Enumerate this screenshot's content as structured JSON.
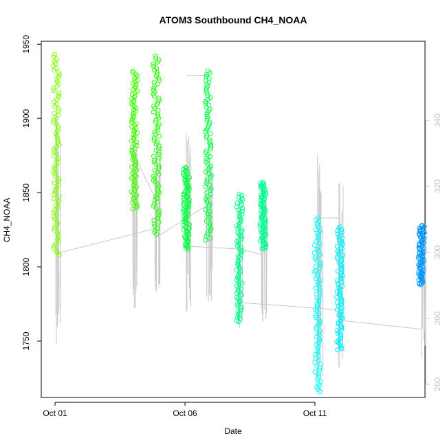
{
  "chart_data": {
    "type": "scatter",
    "title": "ATOM3 Southbound CH4_NOAA",
    "xlabel": "Date",
    "ylabel": "CH4_NOAA",
    "x_ticks": [
      "Oct 01",
      "Oct 06",
      "Oct 11"
    ],
    "x_range_days": [
      0,
      14
    ],
    "ylim": [
      1712,
      1952
    ],
    "y_ticks": [
      1750,
      1800,
      1850,
      1900,
      1950
    ],
    "y2lim": [
      256,
      364
    ],
    "y2_ticks": [
      260,
      280,
      300,
      320,
      340
    ],
    "y2_color": "#c8c8c8",
    "grid": false,
    "series": [
      {
        "x": 0.05,
        "low": 1808,
        "high": 1943,
        "color": "#80ff00"
      },
      {
        "x": 3.05,
        "low": 1839,
        "high": 1932,
        "color": "#40ff00"
      },
      {
        "x": 3.9,
        "low": 1822,
        "high": 1942,
        "color": "#20ff00"
      },
      {
        "x": 5.05,
        "low": 1812,
        "high": 1867,
        "color": "#00ff40"
      },
      {
        "x": 5.9,
        "low": 1818,
        "high": 1932,
        "color": "#00ff40"
      },
      {
        "x": 7.1,
        "low": 1763,
        "high": 1849,
        "color": "#00ff90"
      },
      {
        "x": 8.0,
        "low": 1812,
        "high": 1857,
        "color": "#00ff90"
      },
      {
        "x": 10.1,
        "low": 1716,
        "high": 1833,
        "color": "#00ffff"
      },
      {
        "x": 10.95,
        "low": 1744,
        "high": 1827,
        "color": "#00f0ff"
      },
      {
        "x": 14.1,
        "low": 1788,
        "high": 1828,
        "color": "#0099ff"
      }
    ],
    "secondary_series": {
      "color": "#c8c8c8",
      "spikes": [
        {
          "x": 0.05,
          "low": 272,
          "high": 342
        },
        {
          "x": 3.05,
          "low": 283,
          "high": 338
        },
        {
          "x": 3.9,
          "low": 288,
          "high": 334
        },
        {
          "x": 5.05,
          "low": 282,
          "high": 336
        },
        {
          "x": 5.9,
          "low": 285,
          "high": 334
        },
        {
          "x": 7.1,
          "low": 277,
          "high": 318
        },
        {
          "x": 8.0,
          "low": 279,
          "high": 319
        },
        {
          "x": 10.1,
          "low": 262,
          "high": 330
        },
        {
          "x": 10.95,
          "low": 265,
          "high": 321
        },
        {
          "x": 14.1,
          "low": 268,
          "high": 308
        }
      ],
      "connectors": [
        {
          "x": [
            0.05,
            3.9
          ],
          "y": [
            1809,
            1826
          ]
        },
        {
          "x": [
            3.05,
            3.9
          ],
          "y": [
            1875,
            1845
          ]
        },
        {
          "x": [
            3.9,
            5.9
          ],
          "y": [
            1820,
            1842
          ]
        },
        {
          "x": [
            5.05,
            5.9
          ],
          "y": [
            1929,
            1929
          ]
        },
        {
          "x": [
            5.05,
            7.1
          ],
          "y": [
            1814,
            1812
          ]
        },
        {
          "x": [
            7.1,
            8.0
          ],
          "y": [
            1812,
            1808
          ]
        },
        {
          "x": [
            7.1,
            10.95
          ],
          "y": [
            1776,
            1771
          ]
        },
        {
          "x": [
            10.1,
            10.95
          ],
          "y": [
            1833,
            1833
          ]
        },
        {
          "x": [
            10.95,
            14.1
          ],
          "y": [
            1764,
            1758
          ]
        }
      ]
    }
  }
}
